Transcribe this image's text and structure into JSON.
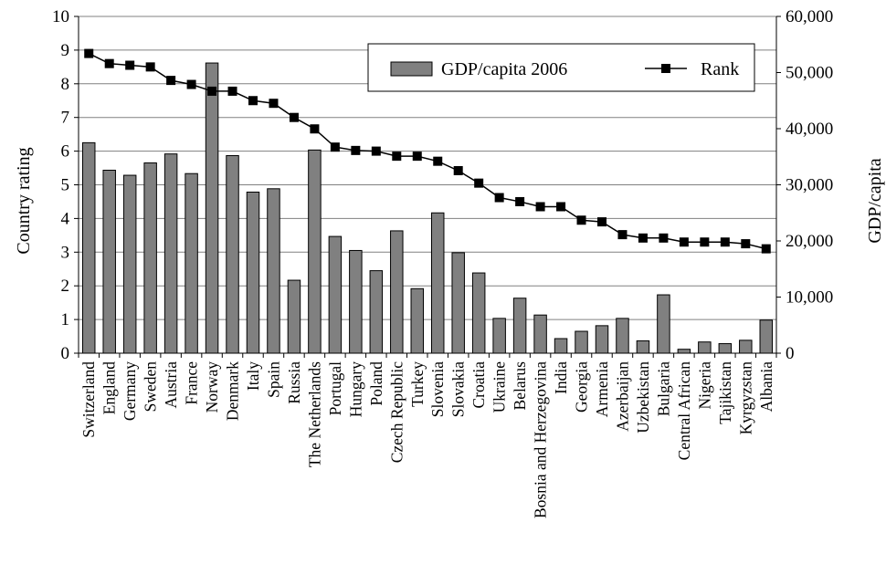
{
  "chart_data": {
    "type": "bar+line",
    "categories": [
      "Switzerland",
      "England",
      "Germany",
      "Sweden",
      "Austria",
      "France",
      "Norway",
      "Denmark",
      "Italy",
      "Spain",
      "Russia",
      "The Netherlands",
      "Portugal",
      "Hungary",
      "Poland",
      "Czech Republic",
      "Turkey",
      "Slovenia",
      "Slovakia",
      "Croatia",
      "Ukraine",
      "Belarus",
      "Bosnia and Herzegovina",
      "India",
      "Georgia",
      "Armenia",
      "Azerbaijan",
      "Uzbekistan",
      "Bulgaria",
      "Central African",
      "Nigeria",
      "Tajikistan",
      "Kyrgyzstan",
      "Albania"
    ],
    "series": [
      {
        "name": "GDP/capita 2006",
        "type": "bar",
        "axis": "right",
        "color": "#808080",
        "values": [
          37500,
          32600,
          31700,
          33900,
          35500,
          32000,
          51700,
          35200,
          28700,
          29300,
          13000,
          36200,
          20800,
          18300,
          14700,
          21800,
          11500,
          25000,
          17900,
          14300,
          6200,
          9800,
          6800,
          2600,
          3900,
          4900,
          6200,
          2200,
          10400,
          700,
          2000,
          1700,
          2300,
          5900
        ]
      },
      {
        "name": "Rank",
        "type": "line",
        "axis": "left",
        "color": "#000000",
        "values": [
          8.9,
          8.6,
          8.55,
          8.5,
          8.1,
          7.98,
          7.78,
          7.78,
          7.5,
          7.42,
          7.0,
          6.66,
          6.12,
          6.02,
          6.0,
          5.85,
          5.85,
          5.7,
          5.42,
          5.05,
          4.62,
          4.5,
          4.35,
          4.35,
          3.95,
          3.9,
          3.52,
          3.42,
          3.42,
          3.3,
          3.3,
          3.3,
          3.25,
          3.1
        ]
      }
    ],
    "y_left": {
      "label": "Country rating",
      "min": 0,
      "max": 10,
      "ticks": [
        "0",
        "1",
        "2",
        "3",
        "4",
        "5",
        "6",
        "7",
        "8",
        "9",
        "10"
      ]
    },
    "y_right": {
      "label": "GDP/capita",
      "min": 0,
      "max": 60000,
      "ticks": [
        "0",
        "10,000",
        "20,000",
        "30,000",
        "40,000",
        "50,000",
        "60,000"
      ]
    },
    "grid": "horizontal",
    "legend": {
      "placement": "top-right",
      "items": [
        "GDP/capita 2006",
        "Rank"
      ]
    }
  }
}
